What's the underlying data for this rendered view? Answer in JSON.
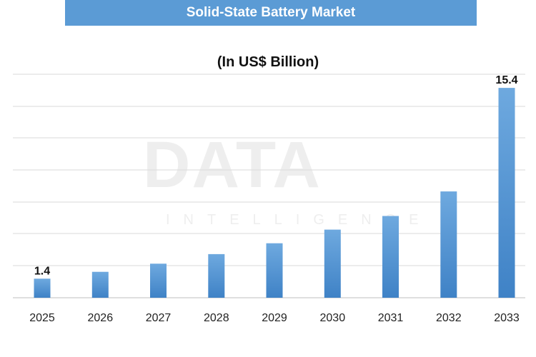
{
  "title": "Solid-State Battery Market",
  "subtitle": "(In US$ Billion)",
  "watermark": {
    "main": "DATA",
    "sub": "INTELLIGENCE"
  },
  "colors": {
    "banner": "#5b9bd5",
    "bar_top": "#6ea9df",
    "bar_bottom": "#3f82c6",
    "grid": "#d9d9d9"
  },
  "chart_data": {
    "type": "bar",
    "title": "Solid-State Battery Market",
    "subtitle": "(In US$ Billion)",
    "categories": [
      "2025",
      "2026",
      "2027",
      "2028",
      "2029",
      "2030",
      "2031",
      "2032",
      "2033"
    ],
    "values": [
      1.4,
      1.9,
      2.5,
      3.2,
      4.0,
      5.0,
      6.0,
      7.8,
      15.4
    ],
    "data_labels": [
      {
        "index": 0,
        "text": "1.4"
      },
      {
        "index": 8,
        "text": "15.4"
      }
    ],
    "xlabel": "",
    "ylabel": "",
    "grid": true,
    "legend": "none"
  }
}
